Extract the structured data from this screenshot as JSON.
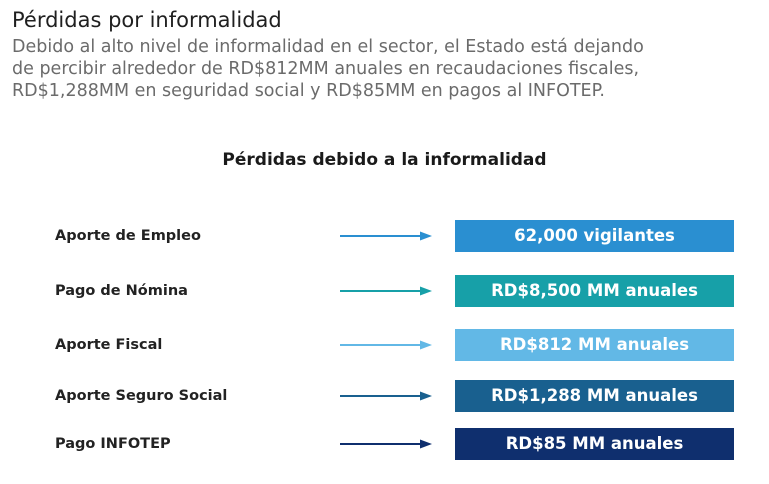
{
  "header": {
    "title": "Pérdidas por informalidad",
    "intro_lines": [
      "Debido al alto nivel de informalidad en el sector, el Estado está dejando",
      "de percibir alrededor de RD$812MM anuales en recaudaciones fiscales,",
      "RD$1,288MM en seguridad social y RD$85MM en pagos al INFOTEP."
    ]
  },
  "section": {
    "title": "Pérdidas debido a la informalidad"
  },
  "rows": [
    {
      "label": "Aporte de Empleo",
      "value": "62,000 vigilantes",
      "color": "#2a8fd1"
    },
    {
      "label": "Pago de Nómina",
      "value": "RD$8,500 MM anuales",
      "color": "#17a0a8"
    },
    {
      "label": "Aporte Fiscal",
      "value": "RD$812 MM anuales",
      "color": "#62b8e6"
    },
    {
      "label": "Aporte Seguro Social",
      "value": "RD$1,288 MM anuales",
      "color": "#19608f"
    },
    {
      "label": "Pago INFOTEP",
      "value": "RD$85 MM anuales",
      "color": "#0f2f6e"
    }
  ]
}
